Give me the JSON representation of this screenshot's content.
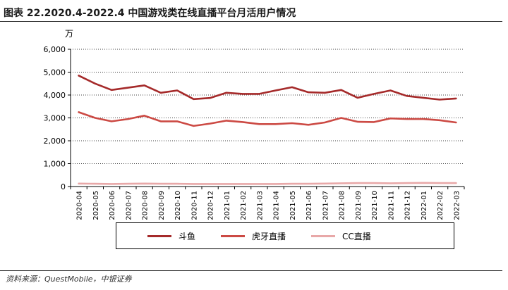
{
  "figure_title": "图表 22.2020.4-2022.4 中国游戏类在线直播平台月活用户情况",
  "source_note": "资料来源：QuestMobile，中银证券",
  "chart_data": {
    "type": "line",
    "y_unit": "万",
    "ylim": [
      0,
      6000
    ],
    "yticks": [
      0,
      1000,
      2000,
      3000,
      4000,
      5000,
      6000
    ],
    "ytick_labels": [
      "0",
      "1,000",
      "2,000",
      "3,000",
      "4,000",
      "5,000",
      "6,000"
    ],
    "grid": true,
    "legend_position": "bottom",
    "categories": [
      "2020-04",
      "2020-05",
      "2020-06",
      "2020-07",
      "2020-08",
      "2020-09",
      "2020-10",
      "2020-11",
      "2020-12",
      "2021-01",
      "2021-02",
      "2021-03",
      "2021-04",
      "2021-05",
      "2021-06",
      "2021-07",
      "2021-08",
      "2021-09",
      "2021-10",
      "2021-11",
      "2021-12",
      "2022-01",
      "2022-02",
      "2022-03"
    ],
    "series": [
      {
        "name": "斗鱼",
        "color": "#a52a2a",
        "values": [
          4850,
          4500,
          4220,
          4320,
          4420,
          4100,
          4200,
          3820,
          3870,
          4100,
          4050,
          4050,
          4200,
          4340,
          4120,
          4100,
          4220,
          3880,
          4050,
          4200,
          3960,
          3880,
          3800,
          3850
        ]
      },
      {
        "name": "虎牙直播",
        "color": "#cc4a44",
        "values": [
          3250,
          3000,
          2850,
          2950,
          3100,
          2850,
          2850,
          2650,
          2750,
          2880,
          2820,
          2730,
          2730,
          2770,
          2700,
          2800,
          3000,
          2830,
          2820,
          2980,
          2950,
          2950,
          2900,
          2800
        ]
      },
      {
        "name": "CC直播",
        "color": "#e8a8a8",
        "values": [
          130,
          120,
          110,
          120,
          130,
          120,
          120,
          110,
          110,
          110,
          110,
          110,
          110,
          120,
          120,
          130,
          140,
          150,
          150,
          140,
          150,
          160,
          150,
          150
        ]
      }
    ]
  }
}
